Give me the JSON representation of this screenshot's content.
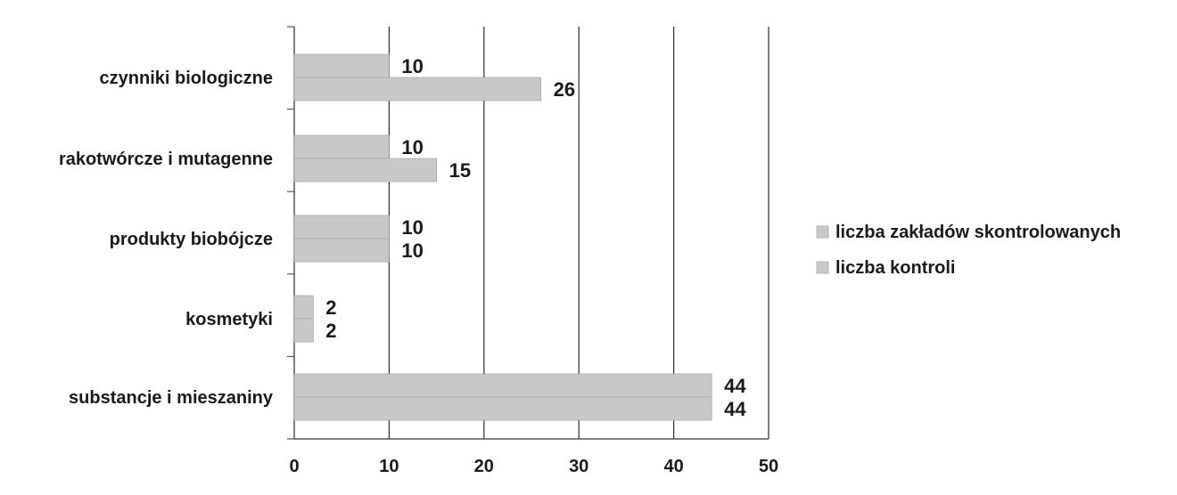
{
  "chart_data": {
    "type": "bar",
    "orientation": "horizontal",
    "categories": [
      "czynniki biologiczne",
      "rakotwórcze i mutagenne",
      "produkty biobójcze",
      "kosmetyki",
      "substancje i mieszaniny"
    ],
    "series": [
      {
        "name": "liczba zakładów skontrolowanych",
        "values": [
          10,
          10,
          10,
          2,
          44
        ],
        "color": "#c8c8c8"
      },
      {
        "name": "liczba kontroli",
        "values": [
          26,
          15,
          10,
          2,
          44
        ],
        "color": "#c8c8c8"
      }
    ],
    "x_ticks": [
      "0",
      "10",
      "20",
      "30",
      "40",
      "50"
    ],
    "xlim": [
      0,
      50
    ],
    "grid": true,
    "legend_position": "right",
    "bar_color": "#c8c8c8",
    "bar_edge_color": "#a9a9a9"
  }
}
